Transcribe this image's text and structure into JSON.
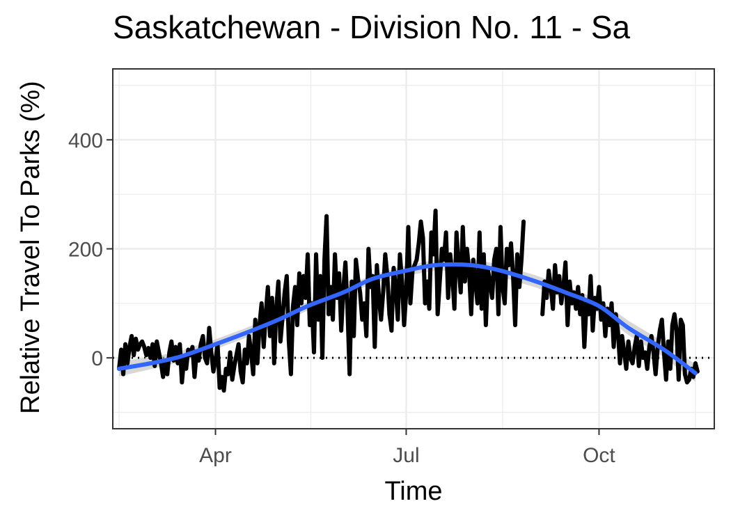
{
  "chart_data": {
    "type": "line",
    "title": "Saskatchewan - Division No. 11 - Sa",
    "xlabel": "Time",
    "ylabel": "Relative Travel To Parks (%)",
    "xlim": [
      "2020-02-12",
      "2020-11-25"
    ],
    "ylim": [
      -130,
      530
    ],
    "x_ticks": [
      {
        "date": "2020-04-01",
        "label": "Apr"
      },
      {
        "date": "2020-07-01",
        "label": "Jul"
      },
      {
        "date": "2020-10-01",
        "label": "Oct"
      }
    ],
    "y_ticks": [
      {
        "value": 0,
        "label": "0"
      },
      {
        "value": 200,
        "label": "200"
      },
      {
        "value": 400,
        "label": "400"
      }
    ],
    "grid": true,
    "reference_line": {
      "y": 0,
      "style": "dotted"
    },
    "colors": {
      "series": "#000000",
      "smooth": "#3366ff",
      "ribbon": "#bdbdbd",
      "grid": "#ebebeb",
      "panel_border": "#333333"
    },
    "series": [
      {
        "style": "jagged",
        "segments": [
          {
            "start": "2020-02-15",
            "values": [
              -20,
              15,
              -30,
              25,
              -10,
              20,
              40,
              5,
              35,
              15,
              25,
              30,
              20,
              5,
              18,
              0,
              25,
              -15,
              30,
              10,
              -10,
              -35,
              -5,
              -30,
              10,
              30,
              -5,
              20,
              -10,
              25,
              -45,
              0,
              -20,
              15,
              5,
              20,
              -35,
              10,
              -5,
              25,
              40,
              0,
              -10,
              55,
              10,
              -25,
              -5,
              25,
              -55,
              -35,
              -60,
              -20,
              -30,
              10,
              -40,
              -15,
              5,
              25,
              -25,
              -45,
              15,
              -10,
              40,
              10,
              -30,
              70,
              -10,
              60,
              100,
              20,
              80,
              130,
              40,
              110,
              -10,
              90,
              140,
              30,
              75,
              120,
              150,
              30,
              -30,
              95,
              130,
              60,
              155,
              100,
              150,
              110,
              190,
              60,
              100,
              10,
              190,
              70,
              150,
              0,
              180,
              260,
              80,
              130,
              70,
              190,
              110,
              155,
              50,
              125,
              175,
              90,
              -30,
              140,
              40,
              180,
              145,
              120,
              70,
              100,
              40,
              200,
              130,
              150,
              20,
              170,
              110,
              70,
              120,
              190,
              150,
              80,
              50,
              165,
              130,
              70,
              190,
              140,
              60,
              120,
              240,
              100,
              160,
              170,
              180,
              210,
              250,
              220,
              100,
              140,
              90,
              230,
              190,
              270,
              80,
              140,
              200,
              180,
              230,
              110,
              190,
              150,
              90,
              230,
              170,
              120,
              240,
              140,
              200,
              160,
              80,
              180,
              140,
              100,
              230,
              90,
              190,
              60,
              160,
              140,
              110,
              180,
              200,
              80,
              240,
              130,
              100,
              200,
              170,
              210,
              150,
              60,
              190,
              130,
              180,
              250
            ]
          },
          {
            "start": "2020-09-04",
            "values": [
              80,
              140,
              110,
              160,
              130,
              90,
              170,
              120,
              150,
              100,
              130,
              175,
              60,
              140,
              100,
              120,
              90,
              130,
              80,
              115,
              20,
              100,
              80,
              150,
              50,
              110,
              90,
              130,
              70,
              100,
              40,
              90,
              60,
              100,
              20,
              80,
              50,
              -10,
              40,
              10,
              -20,
              30,
              0,
              -10,
              20,
              40,
              -15,
              30,
              0,
              10,
              -20,
              20,
              40,
              10,
              -30,
              20,
              50,
              70,
              10,
              -40,
              30,
              -20,
              60,
              80,
              50,
              -40,
              70,
              60,
              -30,
              -45,
              -40,
              -20,
              -35,
              -10,
              -25
            ]
          }
        ]
      }
    ],
    "smooth_fit": {
      "x": [
        "2020-02-15",
        "2020-03-01",
        "2020-03-15",
        "2020-04-01",
        "2020-04-15",
        "2020-05-01",
        "2020-05-15",
        "2020-06-01",
        "2020-06-15",
        "2020-07-01",
        "2020-07-15",
        "2020-08-01",
        "2020-08-15",
        "2020-09-01",
        "2020-09-15",
        "2020-10-01",
        "2020-10-15",
        "2020-11-01",
        "2020-11-16"
      ],
      "y": [
        -20,
        -10,
        2,
        25,
        45,
        70,
        95,
        120,
        145,
        160,
        170,
        170,
        160,
        140,
        120,
        95,
        55,
        15,
        -28
      ],
      "band": [
        14,
        11,
        10,
        9,
        9,
        9,
        8,
        8,
        8,
        9,
        10,
        11,
        11,
        11,
        12,
        12,
        13,
        14,
        16
      ]
    }
  }
}
